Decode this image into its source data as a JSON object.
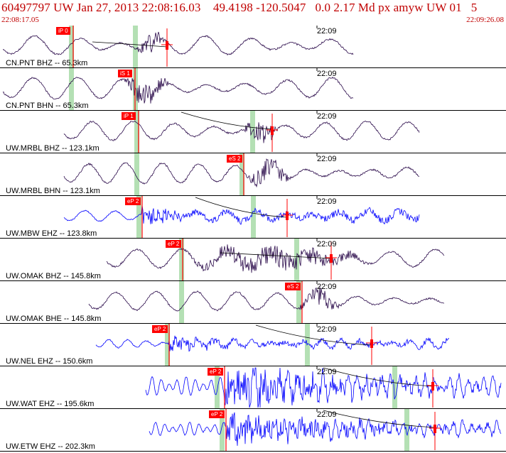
{
  "header": {
    "title": "60497797 UW Jan 27, 2013 22:08:16.03    49.4198 -120.5047   0.0 2.17 Md px amyw UW 01   5",
    "time_start": "22:08:17.05",
    "time_end": "22:09:26.08"
  },
  "time_tick_label": "22:09",
  "colors": {
    "pick": "#ff0000",
    "trace_dark": "#2a0a4a",
    "trace_blue": "#0000ff",
    "window_green": "#b4e0b4",
    "header_red": "#c00000"
  },
  "traces": [
    {
      "label": "CN.PNT BHZ -- 65.3km",
      "pick": "iP 0",
      "color": "dark"
    },
    {
      "label": "CN.PNT BHN -- 65.3km",
      "pick": "iS 1",
      "color": "dark"
    },
    {
      "label": "UW.MRBL BHZ -- 123.1km",
      "pick": "iP 1",
      "color": "dark"
    },
    {
      "label": "UW.MRBL BHN -- 123.1km",
      "pick": "eS 2",
      "color": "dark"
    },
    {
      "label": "UW.MBW EHZ -- 123.8km",
      "pick": "eP 2",
      "color": "blue"
    },
    {
      "label": "UW.OMAK BHZ -- 145.8km",
      "pick": "eP 2",
      "color": "dark"
    },
    {
      "label": "UW.OMAK BHE -- 145.8km",
      "pick": "eS 2",
      "color": "dark"
    },
    {
      "label": "UW.NEL EHZ -- 150.6km",
      "pick": "eP 2",
      "color": "blue"
    },
    {
      "label": "UW.WAT EHZ -- 195.6km",
      "pick": "eP 2",
      "color": "blue"
    },
    {
      "label": "UW.ETW EHZ -- 202.3km",
      "pick": "eP 2",
      "color": "blue"
    }
  ]
}
